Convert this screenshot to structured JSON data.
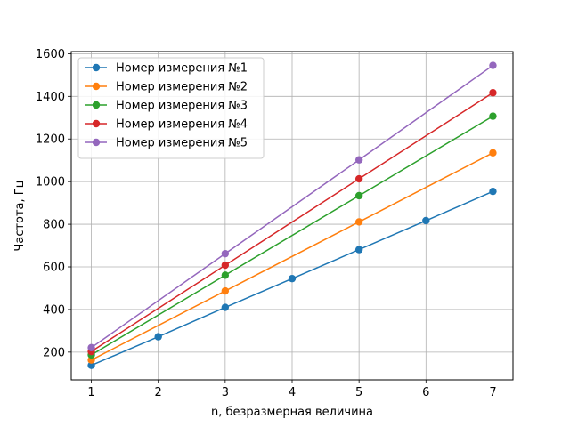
{
  "chart_data": {
    "type": "line",
    "xlabel": "n, безразмерная величина",
    "ylabel": "Частота, Гц",
    "xlim": [
      0.7,
      7.3
    ],
    "ylim": [
      70,
      1610
    ],
    "x_ticks": [
      1,
      2,
      3,
      4,
      5,
      6,
      7
    ],
    "y_ticks": [
      200,
      400,
      600,
      800,
      1000,
      1200,
      1400,
      1600
    ],
    "grid": true,
    "legend_position": "top-left",
    "series": [
      {
        "name": "Номер измерения №1",
        "color": "#1f77b4",
        "x": [
          1,
          2,
          3,
          4,
          5,
          6,
          7
        ],
        "y": [
          138,
          272,
          410,
          545,
          681,
          817,
          954
        ]
      },
      {
        "name": "Номер измерения №2",
        "color": "#ff7f0e",
        "x": [
          1,
          3,
          5,
          7
        ],
        "y": [
          163,
          487,
          811,
          1135
        ]
      },
      {
        "name": "Номер измерения №3",
        "color": "#2ca02c",
        "x": [
          1,
          3,
          5,
          7
        ],
        "y": [
          187,
          561,
          934,
          1307
        ]
      },
      {
        "name": "Номер измерения №4",
        "color": "#d62728",
        "x": [
          1,
          3,
          5,
          7
        ],
        "y": [
          203,
          608,
          1013,
          1417
        ]
      },
      {
        "name": "Номер измерения №5",
        "color": "#9467bd",
        "x": [
          1,
          3,
          5,
          7
        ],
        "y": [
          221,
          662,
          1102,
          1545
        ]
      }
    ]
  }
}
